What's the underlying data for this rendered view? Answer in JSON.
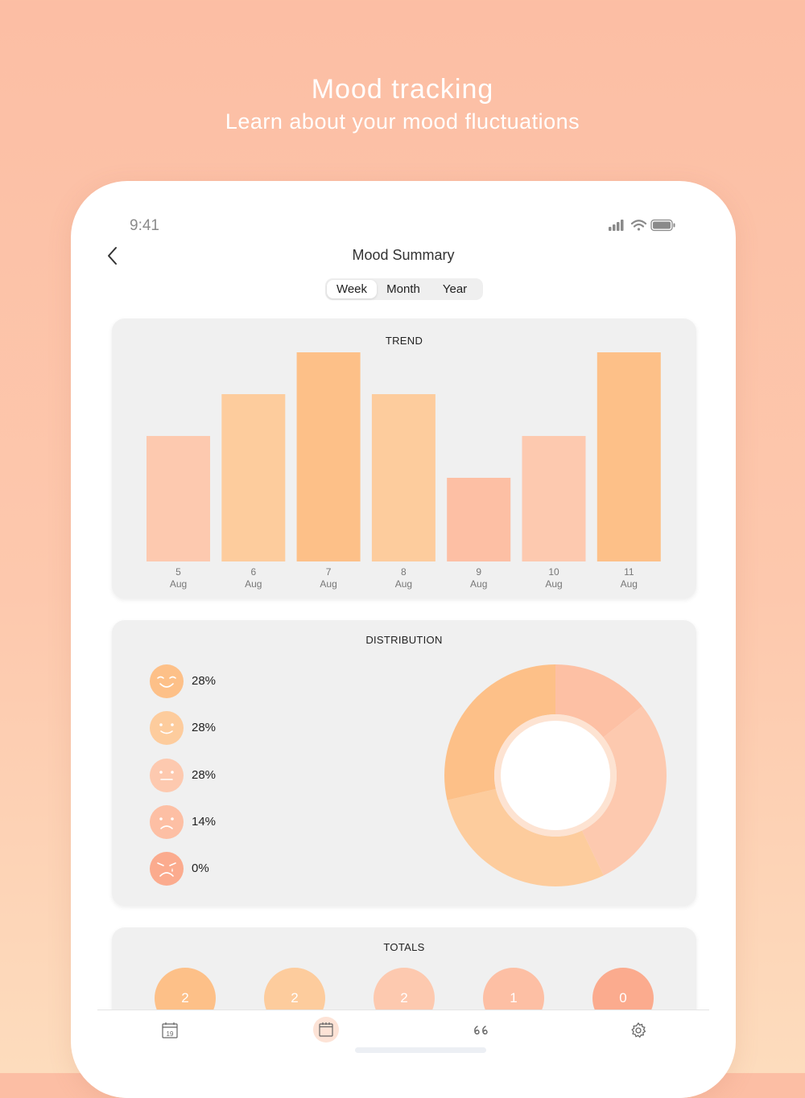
{
  "promo": {
    "title": "Mood tracking",
    "subtitle": "Learn about your mood fluctuations"
  },
  "status_bar": {
    "time": "9:41",
    "icons": [
      "signal-icon",
      "wifi-icon",
      "battery-icon"
    ]
  },
  "nav": {
    "back_icon": "chevron-left-icon",
    "title": "Mood Summary"
  },
  "segments": {
    "items": [
      "Week",
      "Month",
      "Year"
    ],
    "selected": "Week"
  },
  "trend": {
    "title": "TREND",
    "chart_data": {
      "type": "bar",
      "categories": [
        [
          "5",
          "Aug"
        ],
        [
          "6",
          "Aug"
        ],
        [
          "7",
          "Aug"
        ],
        [
          "8",
          "Aug"
        ],
        [
          "9",
          "Aug"
        ],
        [
          "10",
          "Aug"
        ],
        [
          "11",
          "Aug"
        ]
      ],
      "values": [
        3,
        4,
        5,
        4,
        2,
        3,
        5
      ],
      "ylim": [
        0,
        5
      ],
      "bar_colors": [
        "#fdc9af",
        "#fdcc9d",
        "#fdc088",
        "#fdcc9d",
        "#fdbfa4",
        "#fdc9af",
        "#fdc088"
      ],
      "grid": false,
      "legend": "none"
    }
  },
  "distribution": {
    "title": "DISTRIBUTION",
    "items": [
      {
        "icon": "very-happy-face-icon",
        "percent": "28%",
        "color": "#fdc088"
      },
      {
        "icon": "happy-face-icon",
        "percent": "28%",
        "color": "#fdcc9d"
      },
      {
        "icon": "neutral-face-icon",
        "percent": "28%",
        "color": "#fdc9af"
      },
      {
        "icon": "sad-face-icon",
        "percent": "14%",
        "color": "#fdbfa4"
      },
      {
        "icon": "very-sad-face-icon",
        "percent": "0%",
        "color": "#fbab8e"
      }
    ],
    "chart_data": {
      "type": "pie",
      "style": "donut",
      "values": [
        14,
        28,
        28,
        28
      ],
      "colors": [
        "#fdc0a4",
        "#fdc9af",
        "#fdcc9d",
        "#fdc088"
      ]
    }
  },
  "totals": {
    "title": "TOTALS",
    "items": [
      {
        "value": "2",
        "color": "#fdc088"
      },
      {
        "value": "2",
        "color": "#fdcc9d"
      },
      {
        "value": "2",
        "color": "#fdc9af"
      },
      {
        "value": "1",
        "color": "#fdbfa4"
      },
      {
        "value": "0",
        "color": "#fbab8e"
      }
    ]
  },
  "tabbar": {
    "tabs": [
      {
        "icon": "calendar-icon",
        "label_on_icon": "19"
      },
      {
        "icon": "journal-icon",
        "active": true
      },
      {
        "icon": "quote-icon"
      },
      {
        "icon": "settings-gear-icon"
      }
    ],
    "accent": "#fde3d6"
  }
}
